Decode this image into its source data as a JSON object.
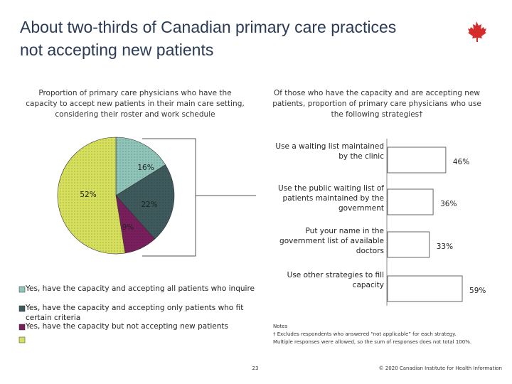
{
  "title": "About two-thirds of Canadian primary care practices not accepting new patients",
  "chart_data": [
    {
      "type": "pie",
      "subtitle": "Proportion of primary care physicians who have the capacity to accept new patients in their main care setting, considering their roster and work schedule",
      "categories": [
        "Yes, have the capacity and accepting all patients who inquire",
        "Yes, have the capacity and accepting only patients who fit certain criteria",
        "Yes, have the capacity but not accepting new patients",
        null
      ],
      "values": [
        16,
        22,
        9,
        52
      ],
      "value_labels": [
        "16%",
        "22%",
        "9%",
        "52%"
      ],
      "colors": [
        "#8fc4b9",
        "#3e5a5c",
        "#7a1f5d",
        "#d6e05c"
      ]
    },
    {
      "type": "hbar",
      "subtitle": "Of those who have the capacity and are accepting new patients, proportion of primary care physicians who use the following strategies†",
      "categories": [
        "Use a waiting list maintained by the clinic",
        "Use the public waiting list of patients maintained by the government",
        "Put your name in the government list of available doctors",
        "Use other strategies to fill capacity"
      ],
      "values": [
        46,
        36,
        33,
        59
      ],
      "value_labels": [
        "46%",
        "36%",
        "33%",
        "59%"
      ],
      "xlim": [
        0,
        100
      ],
      "color": "#ffffff"
    }
  ],
  "notes": [
    "Notes",
    "† Excludes respondents who answered “not applicable” for each strategy.",
    "Multiple responses were allowed, so the sum of responses does not total 100%."
  ],
  "page_number": "23",
  "copyright": "© 2020 Canadian Institute for Health Information"
}
